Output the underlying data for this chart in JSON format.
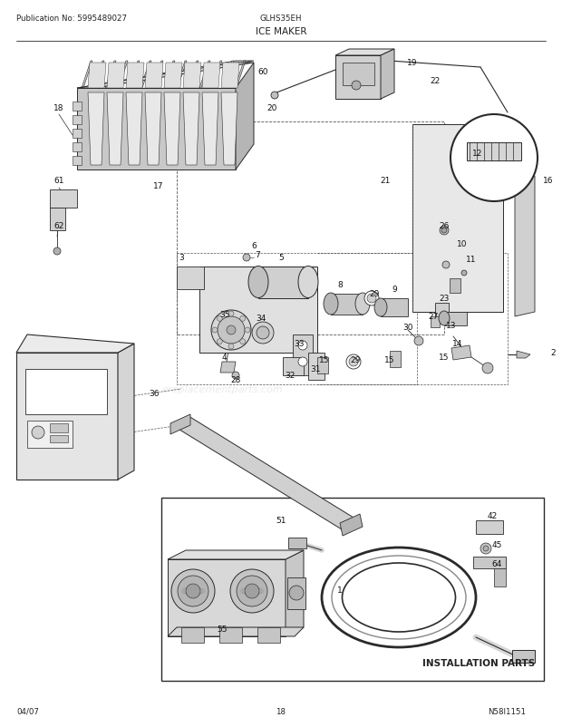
{
  "title_left": "Publication No: 5995489027",
  "title_right": "GLHS35EH",
  "title_center": "ICE MAKER",
  "footer_left": "04/07",
  "footer_center": "18",
  "diagram_id": "N58I1151",
  "installation_parts_label": "INSTALLATION PARTS",
  "background_color": "#ffffff",
  "fig_width": 6.2,
  "fig_height": 8.03,
  "dpi": 100
}
